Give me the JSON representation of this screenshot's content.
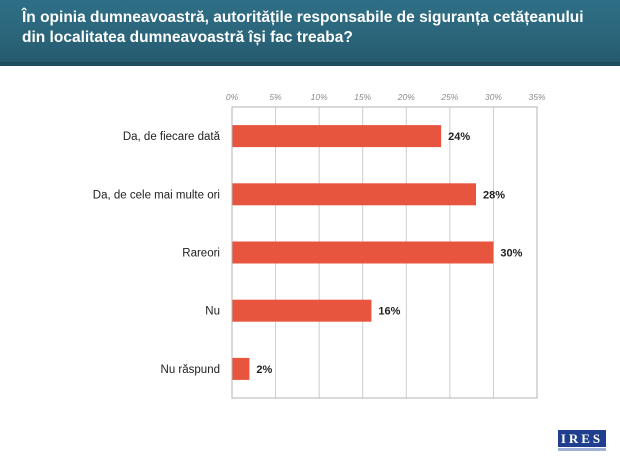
{
  "header": {
    "title": "În opinia dumneavoastră, autoritățile responsabile de siguranța cetățeanului din localitatea dumneavoastră își fac treaba?"
  },
  "logo": {
    "text": "IRES"
  },
  "colors": {
    "bar": "#e8553f",
    "header": "#2a6479",
    "grid": "#cccccc",
    "plot_border": "#b3b3b3"
  },
  "chart_data": {
    "type": "bar",
    "orientation": "horizontal",
    "categories": [
      "Da, de fiecare dată",
      "Da, de cele mai multe ori",
      "Rareori",
      "Nu",
      "Nu răspund"
    ],
    "values": [
      24,
      28,
      30,
      16,
      2
    ],
    "value_labels": [
      "24%",
      "28%",
      "30%",
      "16%",
      "2%"
    ],
    "xlim": [
      0,
      35
    ],
    "x_ticks": [
      "0%",
      "5%",
      "10%",
      "15%",
      "20%",
      "25%",
      "30%",
      "35%"
    ],
    "tick_values": [
      0,
      5,
      10,
      15,
      20,
      25,
      30,
      35
    ],
    "grid": true,
    "xlabel": "",
    "ylabel": ""
  }
}
